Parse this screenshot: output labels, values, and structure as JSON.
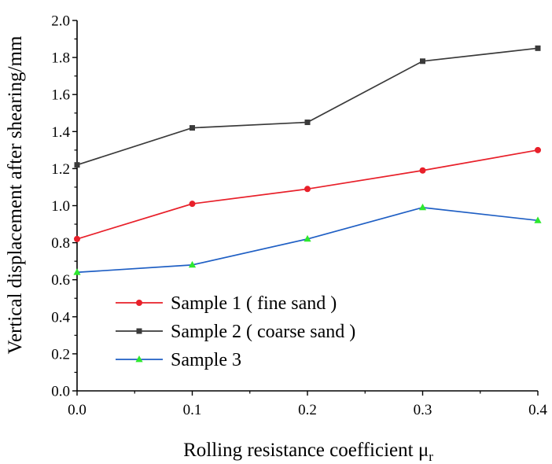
{
  "chart_data": {
    "type": "line",
    "title": "",
    "xlabel": "Rolling resistance coefficient μ",
    "xlabel_subscript": "r",
    "ylabel": "Vertical displacement after shearing/mm",
    "x": [
      0.0,
      0.1,
      0.2,
      0.3,
      0.4
    ],
    "xlim": [
      0.0,
      0.4
    ],
    "ylim": [
      0.0,
      2.0
    ],
    "xticks": [
      "0.0",
      "0.1",
      "0.2",
      "0.3",
      "0.4"
    ],
    "yticks": [
      "0.0",
      "0.2",
      "0.4",
      "0.6",
      "0.8",
      "1.0",
      "1.2",
      "1.4",
      "1.6",
      "1.8",
      "2.0"
    ],
    "grid": false,
    "legend_position": "bottom-left",
    "series": [
      {
        "name": "Sample 1 ( fine sand )",
        "color": "#e8202a",
        "marker": "circle",
        "values": [
          0.82,
          1.01,
          1.09,
          1.19,
          1.3
        ]
      },
      {
        "name": "Sample 2 ( coarse sand )",
        "color": "#3a3a3a",
        "marker": "square",
        "values": [
          1.22,
          1.42,
          1.45,
          1.78,
          1.85
        ]
      },
      {
        "name": "Sample 3",
        "color": "#1f5fc4",
        "marker": "triangle",
        "marker_color": "#2ee82e",
        "values": [
          0.64,
          0.68,
          0.82,
          0.99,
          0.92
        ]
      }
    ]
  }
}
